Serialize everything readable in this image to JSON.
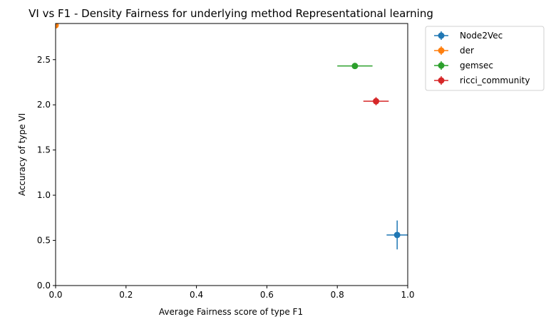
{
  "chart_data": {
    "type": "scatter",
    "title": "VI vs F1 - Density Fairness for underlying method Representational learning",
    "xlabel": "Average Fairness score of type F1",
    "ylabel": "Accuracy of type VI",
    "xlim": [
      0.0,
      1.0
    ],
    "ylim": [
      0.0,
      2.9
    ],
    "x_ticks": [
      0.0,
      0.2,
      0.4,
      0.6,
      0.8,
      1.0
    ],
    "x_tick_labels": [
      "0.0",
      "0.2",
      "0.4",
      "0.6",
      "0.8",
      "1.0"
    ],
    "y_ticks": [
      0.0,
      0.5,
      1.0,
      1.5,
      2.0,
      2.5
    ],
    "y_tick_labels": [
      "0.0",
      "0.5",
      "1.0",
      "1.5",
      "2.0",
      "2.5"
    ],
    "grid": false,
    "legend_position": "outside-top-right",
    "series": [
      {
        "name": "Node2Vec",
        "color": "#1f77b4",
        "x": 0.97,
        "y": 0.56,
        "xerr": 0.03,
        "yerr": 0.16
      },
      {
        "name": "der",
        "color": "#ff7f0e",
        "x": 0.0,
        "y": 2.88,
        "xerr": 0.005,
        "yerr": 0.02
      },
      {
        "name": "gemsec",
        "color": "#2ca02c",
        "x": 0.85,
        "y": 2.43,
        "xerr": 0.05,
        "yerr": 0.01
      },
      {
        "name": "ricci_community",
        "color": "#d62728",
        "x": 0.91,
        "y": 2.04,
        "xerr": 0.036,
        "yerr": 0.045
      }
    ]
  }
}
